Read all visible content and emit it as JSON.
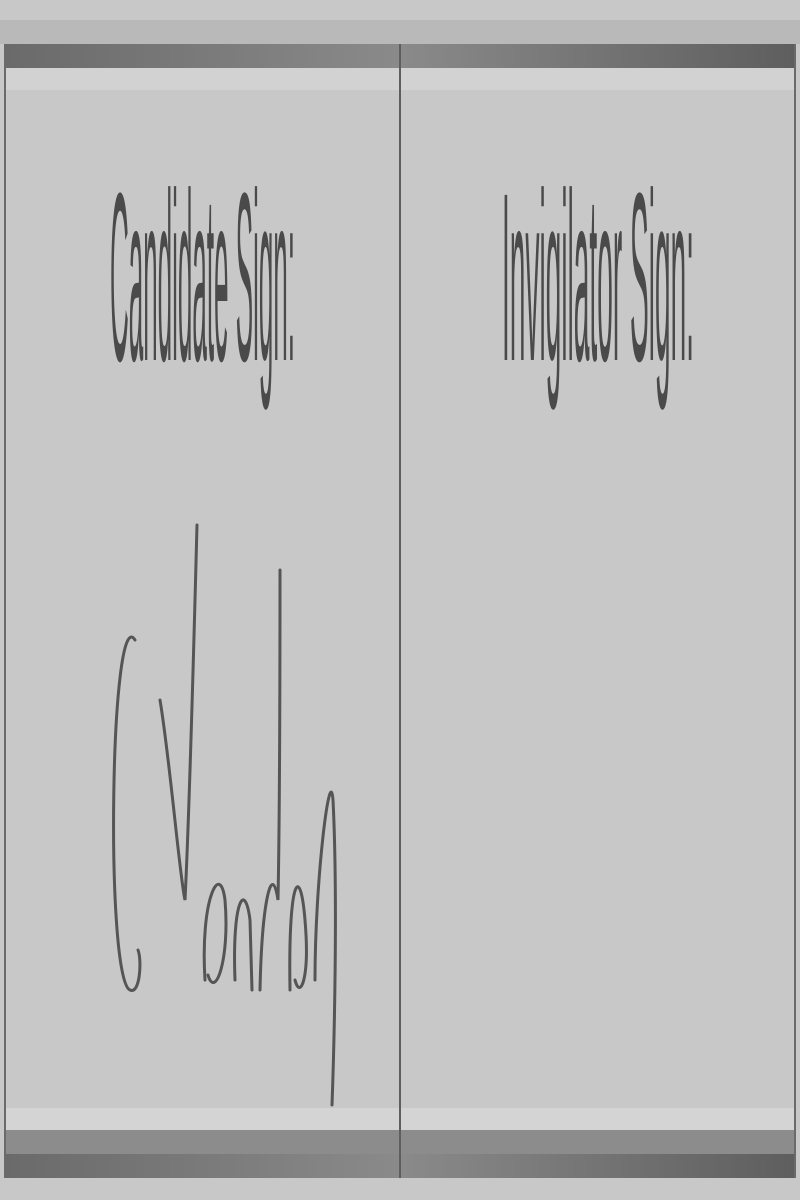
{
  "cells": [
    {
      "label": "Candidate Sign:"
    },
    {
      "label": "Invigilator Sign:"
    }
  ]
}
